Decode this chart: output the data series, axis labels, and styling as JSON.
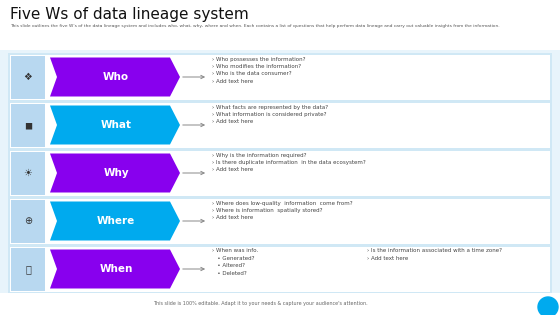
{
  "title": "Five Ws of data lineage system",
  "subtitle": "This slide outlines the five W's of the data lineage system and includes who, what, why, where and when. Each contains a list of questions that help perform data lineage and carry out valuable insights from the information.",
  "footer": "This slide is 100% editable. Adapt it to your needs & capture your audience's attention.",
  "background_color": "#e8f4fb",
  "panel_bg": "#cce5f5",
  "row_bg": "#ffffff",
  "title_bg": "#ffffff",
  "rows": [
    {
      "label": "Who",
      "arrow_color": "#8800ee",
      "text_color": "#ffffff",
      "bullet_text": "› Who possesses the information?\n› Who modifies the information?\n› Who is the data consumer?\n› Add text here",
      "bullet_text_right": null
    },
    {
      "label": "What",
      "arrow_color": "#00aaee",
      "text_color": "#ffffff",
      "bullet_text": "› What facts are represented by the data?\n› What information is considered private?\n› Add text here",
      "bullet_text_right": null
    },
    {
      "label": "Why",
      "arrow_color": "#8800ee",
      "text_color": "#ffffff",
      "bullet_text": "› Why is the information required?\n› Is there duplicate information  in the data ecosystem?\n› Add text here",
      "bullet_text_right": null
    },
    {
      "label": "Where",
      "arrow_color": "#00aaee",
      "text_color": "#ffffff",
      "bullet_text": "› Where does low-quality  information  come from?\n› Where is information  spatially stored?\n› Add text here",
      "bullet_text_right": null
    },
    {
      "label": "When",
      "arrow_color": "#8800ee",
      "text_color": "#ffffff",
      "bullet_text": "› When was info.\n   • Generated?\n   • Altered?\n   • Deleted?",
      "bullet_text_right": "› Is the information associated with a time zone?\n› Add text here"
    }
  ],
  "icon_color": "#555555",
  "title_color": "#111111",
  "subtitle_color": "#555555",
  "bullet_color": "#444444"
}
